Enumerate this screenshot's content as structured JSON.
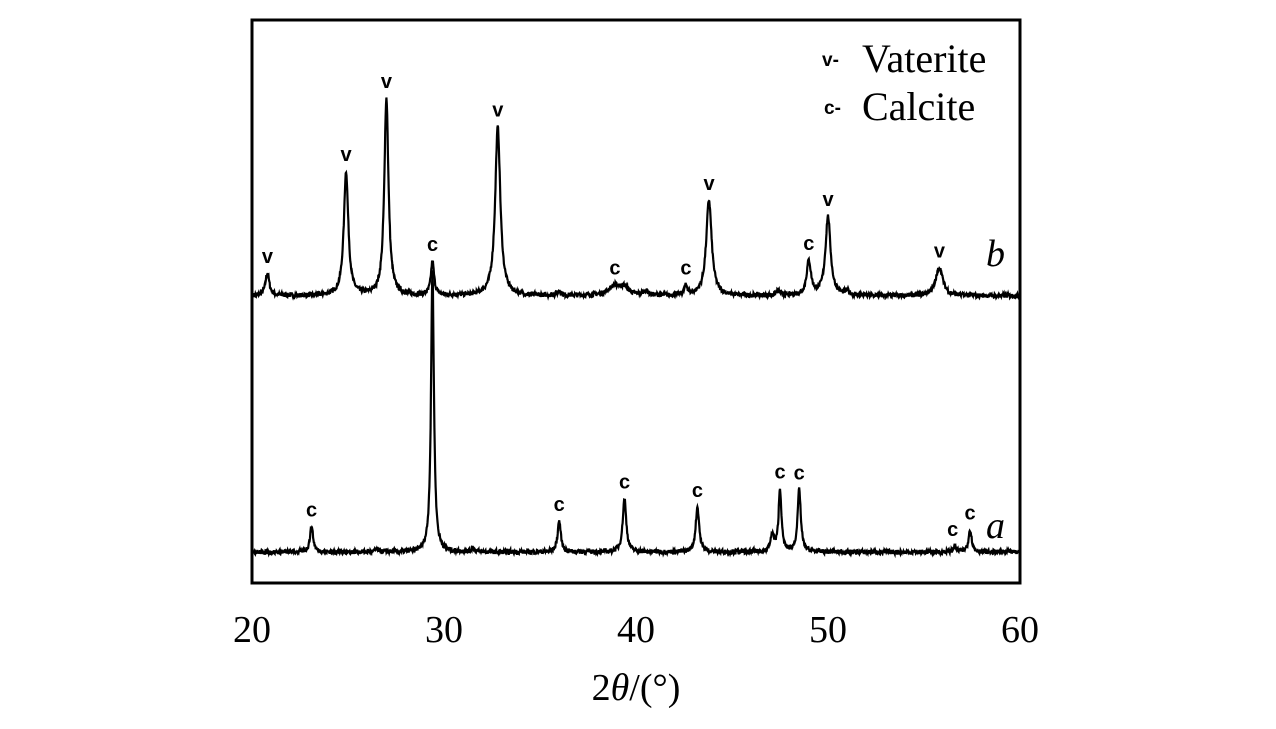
{
  "chart_data": {
    "type": "line",
    "title": "",
    "xlabel_parts": {
      "prefix": "2",
      "theta": "θ",
      "suffix": "/(°)"
    },
    "ylabel": "",
    "xlim": [
      20,
      60
    ],
    "x_ticks": [
      20,
      30,
      40,
      50,
      60
    ],
    "x_tick_labels": [
      "20",
      "30",
      "40",
      "50",
      "60"
    ],
    "grid": false,
    "legend_position": "top-right",
    "legend": [
      {
        "symbol": "v-",
        "label": "Vaterite"
      },
      {
        "symbol": "c-",
        "label": "Calcite"
      }
    ],
    "series": [
      {
        "name": "b",
        "baseline": 0.51,
        "peaks": [
          {
            "x": 20.8,
            "height": 0.04,
            "width": 0.12,
            "label": "v"
          },
          {
            "x": 24.9,
            "height": 0.22,
            "width": 0.14,
            "label": "v"
          },
          {
            "x": 27.0,
            "height": 0.35,
            "width": 0.13,
            "label": "v"
          },
          {
            "x": 29.4,
            "height": 0.06,
            "width": 0.1,
            "label": "c"
          },
          {
            "x": 32.8,
            "height": 0.3,
            "width": 0.16,
            "label": "v"
          },
          {
            "x": 36.0,
            "height": 0.008,
            "width": 0.12
          },
          {
            "x": 38.9,
            "height": 0.017,
            "width": 0.4,
            "label": "c"
          },
          {
            "x": 39.4,
            "height": 0.012,
            "width": 0.25
          },
          {
            "x": 40.5,
            "height": 0.008,
            "width": 0.15
          },
          {
            "x": 42.6,
            "height": 0.016,
            "width": 0.1,
            "label": "c"
          },
          {
            "x": 43.8,
            "height": 0.17,
            "width": 0.17,
            "label": "v"
          },
          {
            "x": 47.4,
            "height": 0.008,
            "width": 0.12
          },
          {
            "x": 49.0,
            "height": 0.06,
            "width": 0.14,
            "label": "c"
          },
          {
            "x": 50.0,
            "height": 0.14,
            "width": 0.16,
            "label": "v"
          },
          {
            "x": 51.0,
            "height": 0.007,
            "width": 0.12
          },
          {
            "x": 55.8,
            "height": 0.05,
            "width": 0.22,
            "label": "v"
          }
        ]
      },
      {
        "name": "a",
        "baseline": 0.055,
        "peaks": [
          {
            "x": 23.1,
            "height": 0.045,
            "width": 0.1,
            "label": "c"
          },
          {
            "x": 26.5,
            "height": 0.005,
            "width": 0.1
          },
          {
            "x": 29.4,
            "height": 0.5,
            "width": 0.09,
            "label": ""
          },
          {
            "x": 31.5,
            "height": 0.008,
            "width": 0.08
          },
          {
            "x": 36.0,
            "height": 0.055,
            "width": 0.1,
            "label": "c"
          },
          {
            "x": 39.4,
            "height": 0.095,
            "width": 0.11,
            "label": "c"
          },
          {
            "x": 43.2,
            "height": 0.08,
            "width": 0.11,
            "label": "c"
          },
          {
            "x": 47.1,
            "height": 0.03,
            "width": 0.1
          },
          {
            "x": 47.5,
            "height": 0.11,
            "width": 0.09,
            "label": "c"
          },
          {
            "x": 48.5,
            "height": 0.11,
            "width": 0.1,
            "label": "c"
          },
          {
            "x": 56.6,
            "height": 0.01,
            "width": 0.1,
            "label": "c"
          },
          {
            "x": 57.4,
            "height": 0.04,
            "width": 0.1,
            "label": "c"
          }
        ]
      }
    ]
  }
}
